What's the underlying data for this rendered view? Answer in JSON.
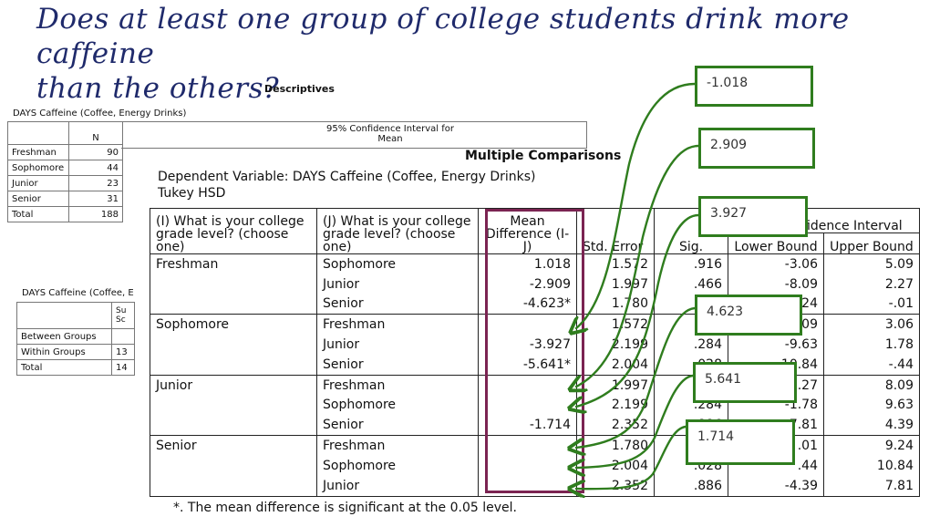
{
  "question": {
    "line1": "Does at least one group of college students drink more caffeine",
    "line2": "than the others?"
  },
  "descriptives": {
    "title": "Descriptives",
    "variable": "DAYS Caffeine (Coffee, Energy Drinks)",
    "ci_header": "95% Confidence Interval for Mean",
    "n_header": "N",
    "rows": [
      {
        "label": "Freshman",
        "n": "90"
      },
      {
        "label": "Sophomore",
        "n": "44"
      },
      {
        "label": "Junior",
        "n": "23"
      },
      {
        "label": "Senior",
        "n": "31"
      },
      {
        "label": "Total",
        "n": "188"
      }
    ]
  },
  "anova": {
    "variable": "DAYS Caffeine (Coffee, E",
    "col_header": "Su Sc",
    "rows": [
      {
        "label": "Between Groups",
        "value": ""
      },
      {
        "label": "Within Groups",
        "value": "13"
      },
      {
        "label": "Total",
        "value": "14"
      }
    ]
  },
  "multiple_comparisons": {
    "title": "Multiple Comparisons",
    "dependent": "Dependent Variable: DAYS Caffeine (Coffee, Energy Drinks)",
    "method": "Tukey HSD",
    "headers": {
      "i": "(I) What is your college grade level? (choose one)",
      "j": "(J) What is your college grade level? (choose one)",
      "mean_diff": "Mean Difference (I-J)",
      "std_error": "Std. Error",
      "sig": "Sig.",
      "ci": "95% Confidence Interval",
      "lower": "Lower Bound",
      "upper": "Upper Bound"
    },
    "rows": [
      {
        "i": "Freshman",
        "j": "Sophomore",
        "md": "1.018",
        "se": "1.572",
        "sig": ".916",
        "lb": "-3.06",
        "ub": "5.09"
      },
      {
        "i": "",
        "j": "Junior",
        "md": "-2.909",
        "se": "1.997",
        "sig": ".466",
        "lb": "-8.09",
        "ub": "2.27"
      },
      {
        "i": "",
        "j": "Senior",
        "md": "-4.623*",
        "se": "1.780",
        "sig": ".024",
        "lb": "-9.24",
        "ub": "-.01"
      },
      {
        "i": "Sophomore",
        "j": "Freshman",
        "md": "",
        "se": "1.572",
        "sig": ".916",
        "lb": "-5.09",
        "ub": "3.06"
      },
      {
        "i": "",
        "j": "Junior",
        "md": "-3.927",
        "se": "2.199",
        "sig": ".284",
        "lb": "-9.63",
        "ub": "1.78"
      },
      {
        "i": "",
        "j": "Senior",
        "md": "-5.641*",
        "se": "2.004",
        "sig": ".028",
        "lb": "-10.84",
        "ub": "-.44"
      },
      {
        "i": "Junior",
        "j": "Freshman",
        "md": "",
        "se": "1.997",
        "sig": ".466",
        "lb": "-2.27",
        "ub": "8.09"
      },
      {
        "i": "",
        "j": "Sophomore",
        "md": "",
        "se": "2.199",
        "sig": ".284",
        "lb": "-1.78",
        "ub": "9.63"
      },
      {
        "i": "",
        "j": "Senior",
        "md": "-1.714",
        "se": "2.352",
        "sig": ".886",
        "lb": "-7.81",
        "ub": "4.39"
      },
      {
        "i": "Senior",
        "j": "Freshman",
        "md": "",
        "se": "1.780",
        "sig": ".024",
        "lb": ".01",
        "ub": "9.24"
      },
      {
        "i": "",
        "j": "Sophomore",
        "md": "",
        "se": "2.004",
        "sig": ".028",
        "lb": ".44",
        "ub": "10.84"
      },
      {
        "i": "",
        "j": "Junior",
        "md": "",
        "se": "2.352",
        "sig": ".886",
        "lb": "-4.39",
        "ub": "7.81"
      }
    ],
    "footnote": "*. The mean difference is significant at the 0.05 level."
  },
  "callouts": [
    "-1.018",
    "2.909",
    "3.927",
    "4.623",
    "5.641",
    "1.714"
  ],
  "colors": {
    "handwriting": "#1f2a6b",
    "highlight_box": "#7b2452",
    "callout_green": "#2f7d1e"
  }
}
